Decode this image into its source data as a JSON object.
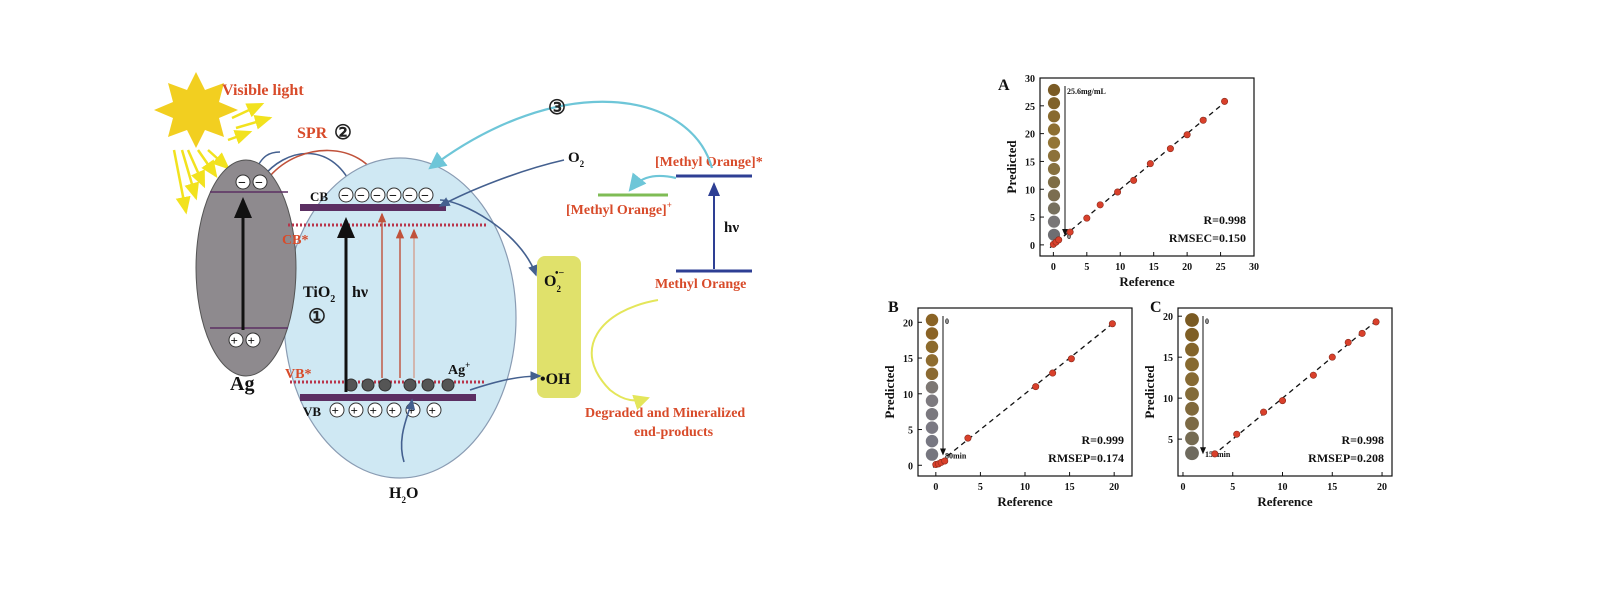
{
  "scheme": {
    "visible_light": "Visible light",
    "spr": "SPR",
    "step2": "②",
    "step3": "③",
    "step1": "①",
    "ag": "Ag",
    "cb": "CB",
    "cb_star": "CB*",
    "vb": "VB",
    "vb_star": "VB*",
    "tio2": "TiO",
    "tio2_sub": "2",
    "hv": "hν",
    "ag_plus": "Ag",
    "ag_plus_sup": "+",
    "o2": "O",
    "o2_sub": "2",
    "superoxide": "O",
    "superoxide_sub": "2",
    "superoxide_sup": "•−",
    "oh_radical": "•OH",
    "h2o_h": "H",
    "h2o_sub": "2",
    "h2o_o": "O",
    "mo_star": "[Methyl Orange]*",
    "mo_plus": "[Methyl Orange]",
    "mo_plus_sup": "+",
    "mo_hv": "hν",
    "mo": "Methyl Orange",
    "degraded_line1": "Degraded and Mineralized",
    "degraded_line2": "end-products",
    "minus": "−",
    "plus": "+"
  },
  "colors": {
    "sun": "#f2cf20",
    "light_arrow": "#f2e21e",
    "label_red": "#d84b2a",
    "ag_fill": "#8e8a8e",
    "tio2_fill": "#cfe8f3",
    "band": "#5b2f62",
    "band_star": "#b8344a",
    "product_box": "#e0e16b",
    "teal_arrow": "#6ec6d8",
    "navy_arrow": "#44608f",
    "mo_line": "#2e3f94",
    "mo_plus_line": "#7fbc55",
    "point_red": "#d9402b"
  },
  "chart_data": [
    {
      "panel": "A",
      "type": "scatter",
      "xlabel": "Reference",
      "ylabel": "Predicted",
      "xlim": [
        -2,
        30
      ],
      "ylim": [
        -2,
        30
      ],
      "xticks": [
        "0",
        "5",
        "10",
        "15",
        "20",
        "25",
        "30"
      ],
      "yticks": [
        "0",
        "5",
        "10",
        "15",
        "20",
        "25",
        "30"
      ],
      "x": [
        0,
        0.4,
        0.8,
        2.5,
        5,
        7,
        9.6,
        12,
        14.5,
        17.5,
        20,
        22.4,
        25.6
      ],
      "y": [
        0.1,
        0.5,
        0.9,
        2.3,
        4.8,
        7.2,
        9.5,
        11.6,
        14.6,
        17.3,
        19.8,
        22.4,
        25.8
      ],
      "fit_line": [
        [
          -0.5,
          -0.5
        ],
        [
          26,
          26
        ]
      ],
      "stats": [
        "R=0.998",
        "RMSEC=0.150"
      ],
      "inset_top_label": "25.6mg/mL",
      "inset_bottom_label": "0",
      "swatches": [
        "#7a5b25",
        "#80622a",
        "#886a2f",
        "#8d6f32",
        "#937536",
        "#8c713a",
        "#86703f",
        "#7e6d45",
        "#7b6d50",
        "#77705e",
        "#787677",
        "#6e6e72"
      ]
    },
    {
      "panel": "B",
      "type": "scatter",
      "xlabel": "Reference",
      "ylabel": "Predicted",
      "xlim": [
        -2,
        22
      ],
      "ylim": [
        -1.5,
        22
      ],
      "xticks": [
        "0",
        "5",
        "10",
        "15",
        "20"
      ],
      "yticks": [
        "0",
        "5",
        "10",
        "15",
        "20"
      ],
      "x": [
        0,
        0.3,
        0.6,
        1.0,
        3.6,
        11.2,
        13.1,
        15.2,
        19.8
      ],
      "y": [
        0.1,
        0.2,
        0.4,
        0.6,
        3.8,
        11.0,
        12.9,
        14.9,
        19.8
      ],
      "fit_line": [
        [
          -0.3,
          -0.3
        ],
        [
          20,
          20
        ]
      ],
      "stats": [
        "R=0.999",
        "RMSEP=0.174"
      ],
      "inset_top_label": "0",
      "inset_bottom_label": "80min",
      "swatches": [
        "#8a6325",
        "#8a6326",
        "#8c6a2c",
        "#8e6c2f",
        "#8b6a32",
        "#7d7773",
        "#7d7a7f",
        "#7a787e",
        "#7b7983",
        "#777782",
        "#76767f"
      ]
    },
    {
      "panel": "C",
      "type": "scatter",
      "xlabel": "Reference",
      "ylabel": "Predicted",
      "xlim": [
        -0.5,
        21
      ],
      "ylim": [
        0.5,
        21
      ],
      "xticks": [
        "0",
        "5",
        "10",
        "15",
        "20"
      ],
      "yticks": [
        "5",
        "10",
        "15",
        "20"
      ],
      "x": [
        3.2,
        5.4,
        8.1,
        10,
        13.1,
        15,
        16.6,
        18,
        19.4
      ],
      "y": [
        3.2,
        5.6,
        8.3,
        9.7,
        12.8,
        15.0,
        16.8,
        17.9,
        19.3
      ],
      "fit_line": [
        [
          3,
          3
        ],
        [
          19.6,
          19.6
        ]
      ],
      "stats": [
        "R=0.998",
        "RMSEP=0.208"
      ],
      "inset_top_label": "0",
      "inset_bottom_label": "150min",
      "swatches": [
        "#7a5a22",
        "#7f5f25",
        "#83642a",
        "#876a2f",
        "#866a33",
        "#836b38",
        "#80693c",
        "#7c6a45",
        "#756b52",
        "#6e6a5e"
      ]
    }
  ]
}
